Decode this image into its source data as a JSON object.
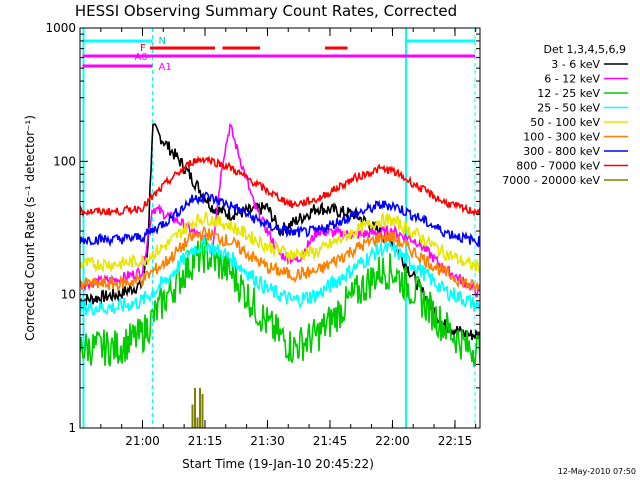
{
  "chart_data": {
    "type": "line",
    "title": "HESSI Observing Summary Count Rates, Corrected",
    "xlabel": "Start Time (19-Jan-10 20:45:22)",
    "ylabel": "Corrected Count Rate (s⁻¹ detector⁻¹)",
    "y_scale": "log",
    "ylim": [
      1,
      1000
    ],
    "y_ticks": [
      "1",
      "10",
      "100",
      "1000"
    ],
    "xlim_minutes": [
      20.75,
      22.35
    ],
    "x_ticks": [
      "21:00",
      "21:15",
      "21:30",
      "21:45",
      "22:00",
      "22:15"
    ],
    "x_tick_values": [
      21.0,
      21.25,
      21.5,
      21.75,
      22.0,
      22.25
    ],
    "legend_title": "Det 1,3,4,5,6,9",
    "legend_position": "right",
    "grid": false,
    "annotations": {
      "night_label": "N",
      "flare_label": "F",
      "attenuator_labels": [
        "A0",
        "A1"
      ],
      "night_intervals": [
        [
          20.76,
          21.04
        ],
        [
          22.05,
          22.33
        ]
      ],
      "flare_intervals": [
        [
          21.03,
          21.29
        ],
        [
          21.32,
          21.47
        ],
        [
          21.73,
          21.82
        ]
      ],
      "attenuator_A0_interval": [
        20.76,
        21.04
      ],
      "attenuator_A1_interval": [
        21.04,
        22.33
      ]
    },
    "series": [
      {
        "name": "3 - 6 keV",
        "color": "#000000",
        "x": [
          20.75,
          20.9,
          21.0,
          21.02,
          21.04,
          21.15,
          21.28,
          21.35,
          21.5,
          21.55,
          21.7,
          21.85,
          22.0,
          22.1,
          22.2,
          22.3,
          22.35
        ],
        "y": [
          9,
          10,
          12,
          20,
          180,
          100,
          45,
          40,
          45,
          30,
          45,
          40,
          25,
          12,
          6,
          5,
          5
        ]
      },
      {
        "name": "6 - 12 keV",
        "color": "#ff00ff",
        "x": [
          20.75,
          20.9,
          21.0,
          21.04,
          21.15,
          21.28,
          21.32,
          21.35,
          21.45,
          21.55,
          21.62,
          21.7,
          21.85,
          22.0,
          22.1,
          22.2,
          22.3,
          22.35
        ],
        "y": [
          12,
          13,
          15,
          45,
          35,
          23,
          100,
          185,
          45,
          20,
          18,
          30,
          28,
          30,
          25,
          16,
          12,
          10
        ]
      },
      {
        "name": "12 - 25 keV",
        "color": "#00cc00",
        "x": [
          20.75,
          20.9,
          21.0,
          21.1,
          21.2,
          21.25,
          21.35,
          21.5,
          21.6,
          21.7,
          21.85,
          21.95,
          22.0,
          22.1,
          22.2,
          22.3,
          22.35
        ],
        "y": [
          4,
          4,
          5,
          10,
          18,
          20,
          15,
          6,
          4,
          5,
          10,
          15,
          15,
          10,
          6,
          4,
          4
        ]
      },
      {
        "name": "25 - 50 keV",
        "color": "#00ffff",
        "x": [
          20.75,
          20.9,
          21.0,
          21.1,
          21.2,
          21.25,
          21.35,
          21.5,
          21.6,
          21.7,
          21.85,
          21.95,
          22.0,
          22.1,
          22.2,
          22.3,
          22.35
        ],
        "y": [
          8,
          8,
          9,
          13,
          22,
          24,
          19,
          11,
          9,
          10,
          16,
          22,
          22,
          16,
          11,
          9,
          8
        ]
      },
      {
        "name": "50 - 100 keV",
        "color": "#e6e600",
        "x": [
          20.75,
          20.9,
          21.0,
          21.1,
          21.2,
          21.25,
          21.35,
          21.5,
          21.6,
          21.7,
          21.85,
          21.95,
          22.0,
          22.1,
          22.2,
          22.3,
          22.35
        ],
        "y": [
          17,
          17,
          18,
          24,
          35,
          38,
          33,
          23,
          20,
          21,
          30,
          36,
          36,
          28,
          21,
          17,
          16
        ]
      },
      {
        "name": "100 - 300 keV",
        "color": "#ff7f00",
        "x": [
          20.75,
          20.9,
          21.0,
          21.1,
          21.2,
          21.25,
          21.35,
          21.5,
          21.6,
          21.7,
          21.85,
          21.95,
          22.0,
          22.1,
          22.2,
          22.3,
          22.35
        ],
        "y": [
          12,
          12,
          13,
          18,
          27,
          29,
          25,
          16,
          14,
          15,
          22,
          27,
          27,
          20,
          15,
          12,
          11
        ]
      },
      {
        "name": "300 - 800 keV",
        "color": "#0000ff",
        "x": [
          20.75,
          20.9,
          21.0,
          21.1,
          21.2,
          21.25,
          21.35,
          21.5,
          21.6,
          21.7,
          21.85,
          21.95,
          22.0,
          22.1,
          22.2,
          22.3,
          22.35
        ],
        "y": [
          26,
          26,
          27,
          36,
          52,
          55,
          47,
          33,
          29,
          30,
          40,
          47,
          47,
          38,
          30,
          26,
          25
        ]
      },
      {
        "name": "800 - 7000 keV",
        "color": "#ff0000",
        "x": [
          20.75,
          20.9,
          21.0,
          21.1,
          21.2,
          21.25,
          21.35,
          21.5,
          21.6,
          21.7,
          21.85,
          21.95,
          22.0,
          22.1,
          22.2,
          22.3,
          22.35
        ],
        "y": [
          42,
          42,
          45,
          70,
          100,
          105,
          90,
          60,
          47,
          52,
          75,
          88,
          85,
          65,
          50,
          43,
          42
        ]
      },
      {
        "name": "7000 - 20000 keV",
        "color": "#808000",
        "x": [
          21.19,
          21.2,
          21.21,
          21.22,
          21.23,
          21.24,
          21.25
        ],
        "y": [
          1,
          1.5,
          2,
          1.2,
          2,
          1.8,
          1
        ]
      }
    ]
  },
  "timestamp": "12-May-2010 07:50"
}
